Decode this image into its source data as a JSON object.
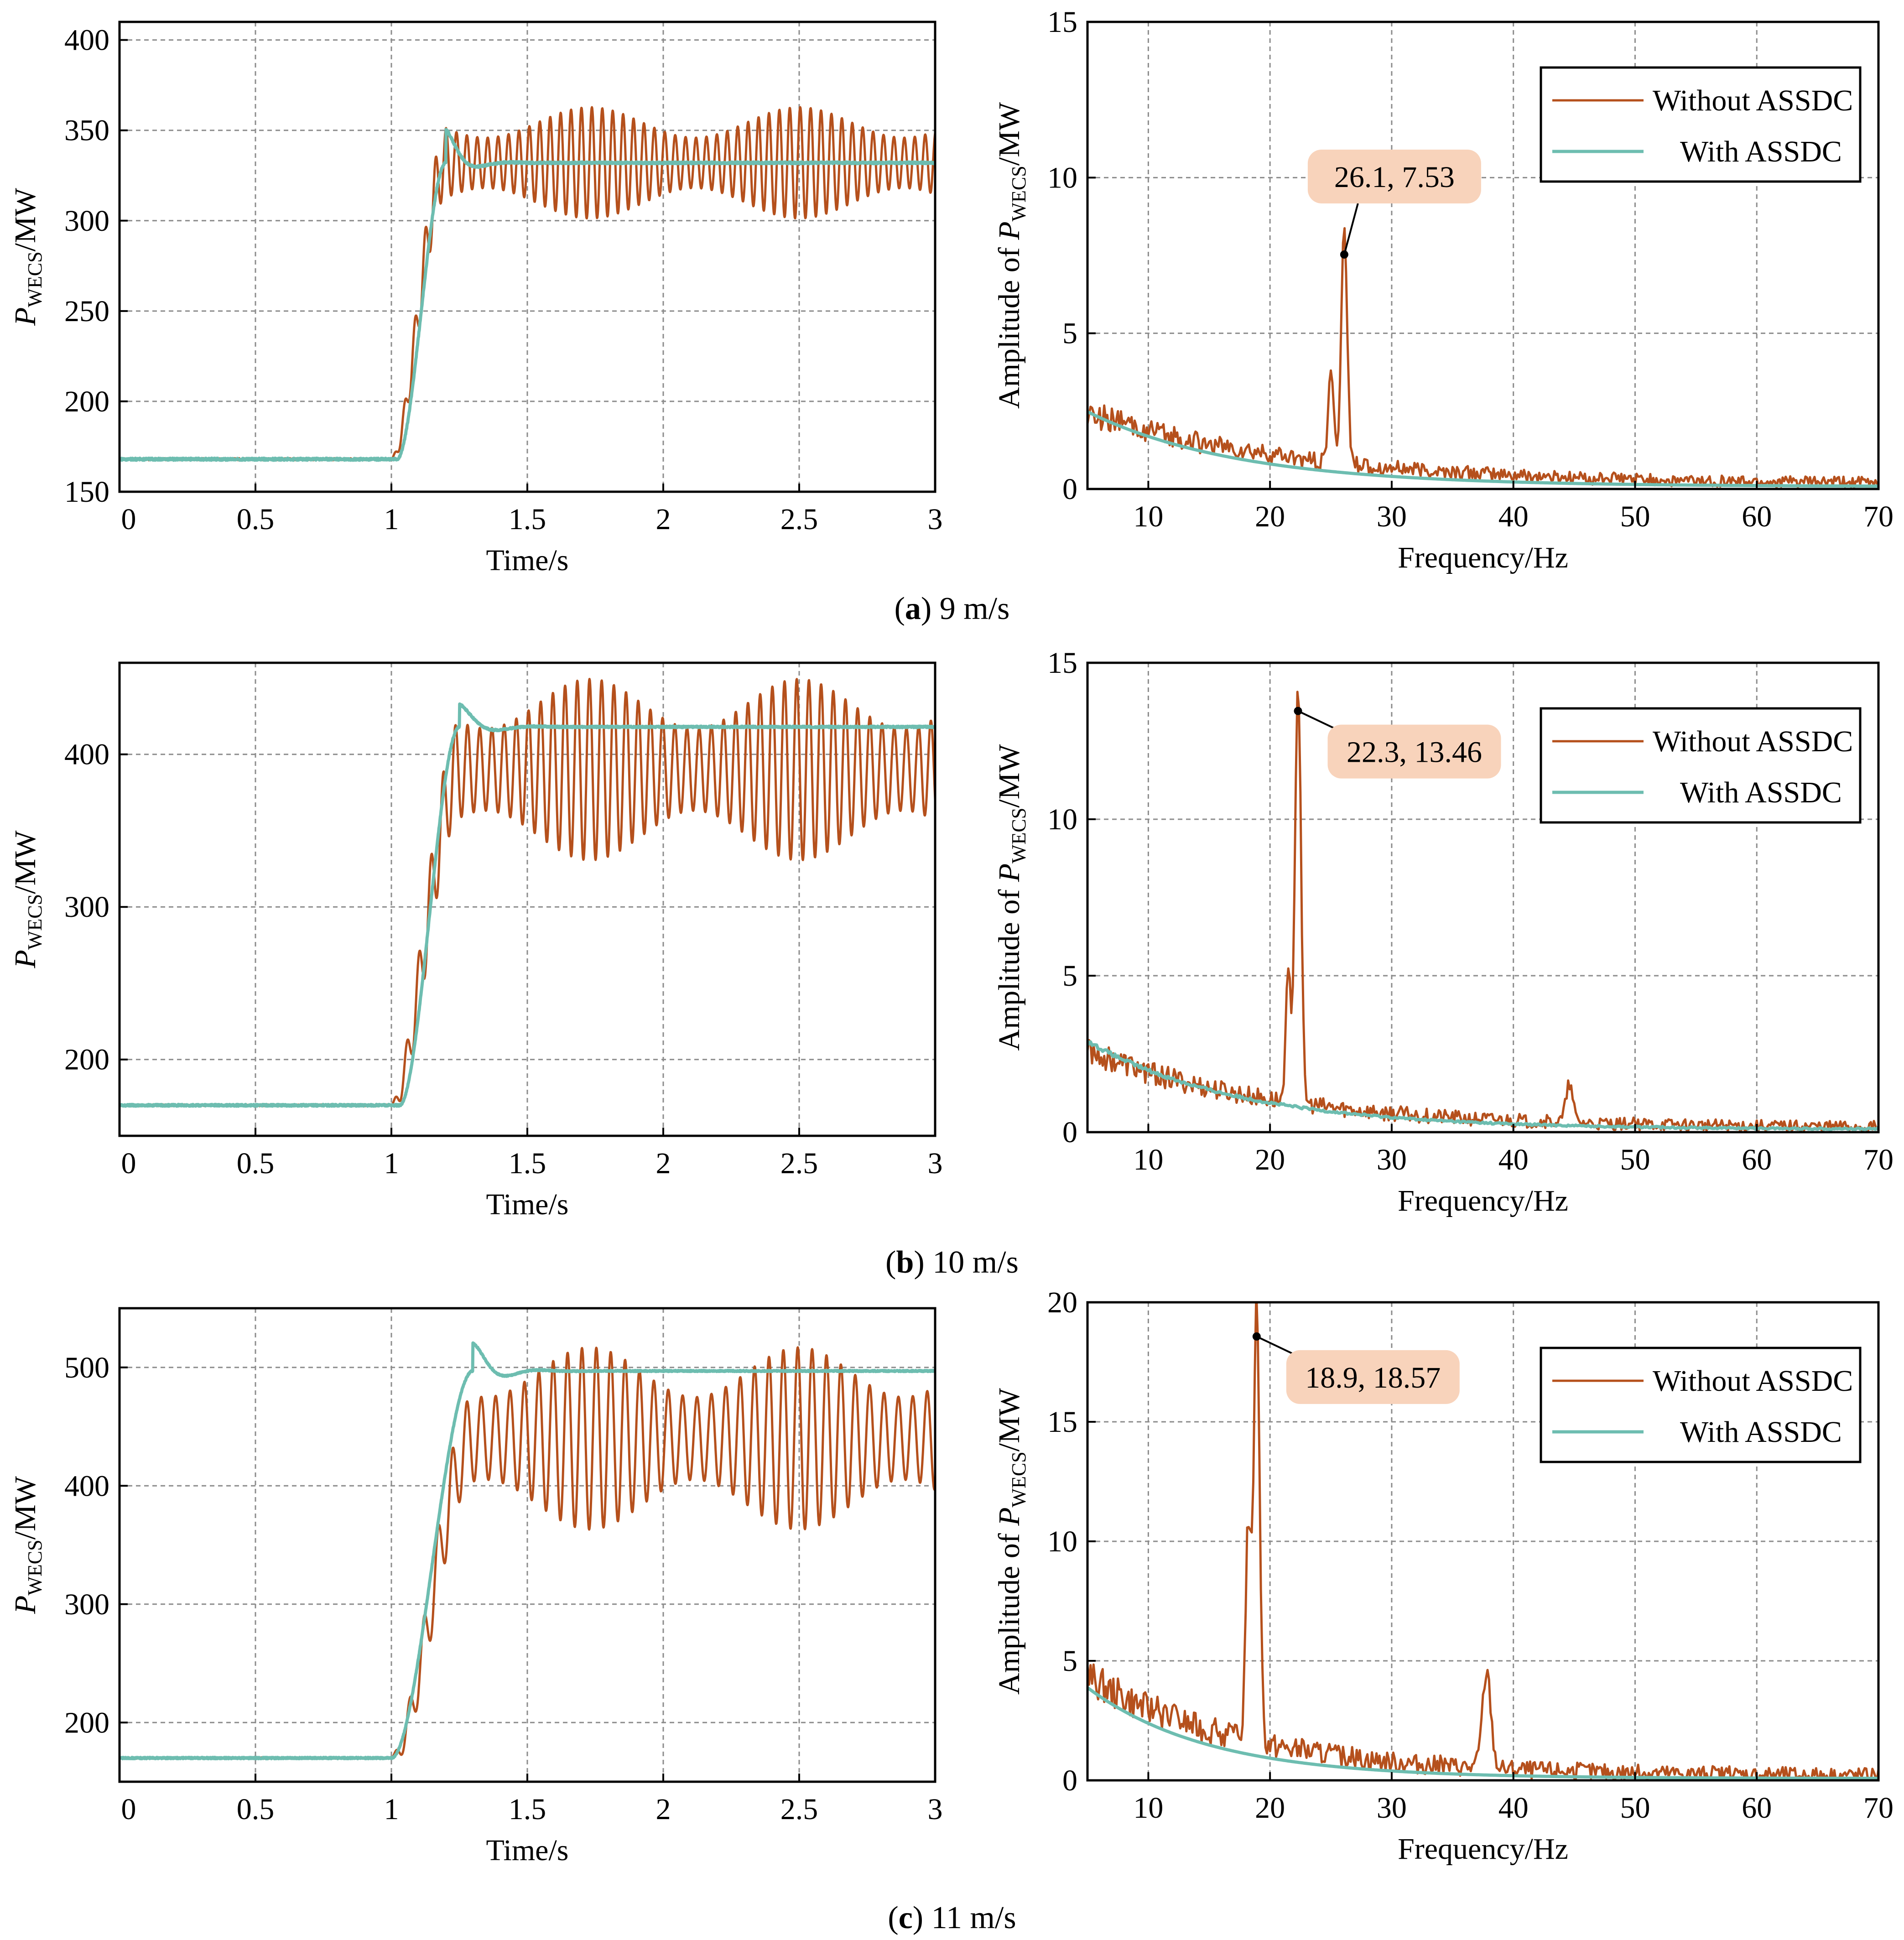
{
  "colors": {
    "without": "#b5501c",
    "with": "#6dbdb0",
    "grid": "#8c8c8c",
    "callout_fill": "#f8d3bb",
    "axis": "#000000"
  },
  "captions": [
    {
      "letter": "a",
      "text": " 9 m/s"
    },
    {
      "letter": "b",
      "text": " 10 m/s"
    },
    {
      "letter": "c",
      "text": " 11 m/s"
    }
  ],
  "chart_data": [
    {
      "id": "a-time",
      "type": "line",
      "panel": "a",
      "xlabel": "Time/s",
      "ylabel": "P_WECS/MW",
      "ylabel_parts": {
        "main": "P",
        "sub": "WECS",
        "unit": "/MW"
      },
      "xlim": [
        0,
        3
      ],
      "ylim": [
        150,
        410
      ],
      "xticks": [
        0,
        0.5,
        1,
        1.5,
        2,
        2.5,
        3
      ],
      "xtick_labels": [
        "0",
        "0.5",
        "1",
        "1.5",
        "2",
        "2.5",
        "3"
      ],
      "yticks": [
        150,
        200,
        250,
        300,
        350,
        400
      ],
      "ytick_labels": [
        "150",
        "200",
        "250",
        "300",
        "350",
        "400"
      ],
      "series": [
        {
          "name": "Without ASSDC",
          "color": "#b5501c",
          "model": {
            "kind": "step_osc",
            "y0": 168,
            "t_start": 1.0,
            "t_rise": 0.2,
            "y1": 332,
            "osc_amp": 28,
            "osc_freq": 26.1
          }
        },
        {
          "name": "With ASSDC",
          "color": "#6dbdb0",
          "model": {
            "kind": "step_damped",
            "y0": 168,
            "t_start": 1.02,
            "t_rise": 0.18,
            "y1": 332,
            "overshoot": 20,
            "damp": 18,
            "freq": 4
          }
        }
      ]
    },
    {
      "id": "a-fft",
      "type": "line",
      "panel": "a",
      "xlabel": "Frequency/Hz",
      "ylabel": "Amplitude of P_WECS/MW",
      "ylabel_parts": {
        "main": "Amplitude of ",
        "italic": "P",
        "sub": "WECS",
        "unit": "/MW"
      },
      "xlim": [
        5,
        70
      ],
      "ylim": [
        0,
        15
      ],
      "xticks": [
        10,
        20,
        30,
        40,
        50,
        60,
        70
      ],
      "xtick_labels": [
        "10",
        "20",
        "30",
        "40",
        "50",
        "60",
        "70"
      ],
      "yticks": [
        0,
        5,
        10,
        15
      ],
      "ytick_labels": [
        "0",
        "5",
        "10",
        "15"
      ],
      "legend": [
        "Without ASSDC",
        "With ASSDC"
      ],
      "legend_position": "top-right",
      "annotation": {
        "text": "26.1, 7.53",
        "x": 26.1,
        "y": 7.53
      },
      "series": [
        {
          "name": "Without ASSDC",
          "color": "#b5501c",
          "model": {
            "kind": "spectrum",
            "base": 2.2,
            "decay": 0.06,
            "peaks": [
              [
                26.1,
                7.53,
                0.35
              ],
              [
                25.0,
                3.0,
                0.3
              ]
            ],
            "noise": 0.35
          }
        },
        {
          "name": "With ASSDC",
          "color": "#6dbdb0",
          "model": {
            "kind": "spectrum",
            "base": 2.4,
            "decay": 0.08,
            "peaks": [],
            "noise": 0.0
          }
        }
      ]
    },
    {
      "id": "b-time",
      "type": "line",
      "panel": "b",
      "xlabel": "Time/s",
      "ylabel": "P_WECS/MW",
      "ylabel_parts": {
        "main": "P",
        "sub": "WECS",
        "unit": "/MW"
      },
      "xlim": [
        0,
        3
      ],
      "ylim": [
        150,
        460
      ],
      "xticks": [
        0,
        0.5,
        1,
        1.5,
        2,
        2.5,
        3
      ],
      "xtick_labels": [
        "0",
        "0.5",
        "1",
        "1.5",
        "2",
        "2.5",
        "3"
      ],
      "yticks": [
        200,
        300,
        400
      ],
      "ytick_labels": [
        "200",
        "300",
        "400"
      ],
      "series": [
        {
          "name": "Without ASSDC",
          "color": "#b5501c",
          "model": {
            "kind": "step_osc",
            "y0": 170,
            "t_start": 1.0,
            "t_rise": 0.25,
            "y1": 390,
            "osc_amp": 54,
            "osc_freq": 22.3
          }
        },
        {
          "name": "With ASSDC",
          "color": "#6dbdb0",
          "model": {
            "kind": "step_damped",
            "y0": 170,
            "t_start": 1.03,
            "t_rise": 0.22,
            "y1": 418,
            "overshoot": 16,
            "damp": 14,
            "freq": 3.5
          }
        }
      ]
    },
    {
      "id": "b-fft",
      "type": "line",
      "panel": "b",
      "xlabel": "Frequency/Hz",
      "ylabel": "Amplitude of P_WECS/MW",
      "ylabel_parts": {
        "main": "Amplitude of ",
        "italic": "P",
        "sub": "WECS",
        "unit": "/MW"
      },
      "xlim": [
        5,
        70
      ],
      "ylim": [
        0,
        15
      ],
      "xticks": [
        10,
        20,
        30,
        40,
        50,
        60,
        70
      ],
      "xtick_labels": [
        "10",
        "20",
        "30",
        "40",
        "50",
        "60",
        "70"
      ],
      "yticks": [
        0,
        5,
        10,
        15
      ],
      "ytick_labels": [
        "0",
        "5",
        "10",
        "15"
      ],
      "legend": [
        "Without ASSDC",
        "With ASSDC"
      ],
      "legend_position": "top-right",
      "annotation": {
        "text": "22.3, 13.46",
        "x": 22.3,
        "y": 13.46
      },
      "series": [
        {
          "name": "Without ASSDC",
          "color": "#b5501c",
          "model": {
            "kind": "spectrum",
            "base": 2.4,
            "decay": 0.07,
            "peaks": [
              [
                22.3,
                13.46,
                0.35
              ],
              [
                21.5,
                4.0,
                0.3
              ],
              [
                44.6,
                1.2,
                0.4
              ]
            ],
            "noise": 0.35
          }
        },
        {
          "name": "With ASSDC",
          "color": "#6dbdb0",
          "model": {
            "kind": "spectrum",
            "base": 2.8,
            "decay": 0.08,
            "peaks": [],
            "noise": 0.05
          }
        }
      ]
    },
    {
      "id": "c-time",
      "type": "line",
      "panel": "c",
      "xlabel": "Time/s",
      "ylabel": "P_WECS/MW",
      "ylabel_parts": {
        "main": "P",
        "sub": "WECS",
        "unit": "/MW"
      },
      "xlim": [
        0,
        3
      ],
      "ylim": [
        150,
        550
      ],
      "xticks": [
        0,
        0.5,
        1,
        1.5,
        2,
        2.5,
        3
      ],
      "xtick_labels": [
        "0",
        "0.5",
        "1",
        "1.5",
        "2",
        "2.5",
        "3"
      ],
      "yticks": [
        200,
        300,
        400,
        500
      ],
      "ytick_labels": [
        "200",
        "300",
        "400",
        "500"
      ],
      "series": [
        {
          "name": "Without ASSDC",
          "color": "#b5501c",
          "model": {
            "kind": "step_osc",
            "y0": 170,
            "t_start": 1.0,
            "t_rise": 0.3,
            "y1": 440,
            "osc_amp": 70,
            "osc_freq": 18.9
          }
        },
        {
          "name": "With ASSDC",
          "color": "#6dbdb0",
          "model": {
            "kind": "step_damped",
            "y0": 170,
            "t_start": 1.0,
            "t_rise": 0.3,
            "y1": 497,
            "overshoot": 25,
            "damp": 14,
            "freq": 4
          }
        }
      ]
    },
    {
      "id": "c-fft",
      "type": "line",
      "panel": "c",
      "xlabel": "Frequency/Hz",
      "ylabel": "Amplitude of P_WECS/MW",
      "ylabel_parts": {
        "main": "Amplitude of ",
        "italic": "P",
        "sub": "WECS",
        "unit": "/MW"
      },
      "xlim": [
        5,
        70
      ],
      "ylim": [
        0,
        20
      ],
      "xticks": [
        10,
        20,
        30,
        40,
        50,
        60,
        70
      ],
      "xtick_labels": [
        "10",
        "20",
        "30",
        "40",
        "50",
        "60",
        "70"
      ],
      "yticks": [
        0,
        5,
        10,
        15,
        20
      ],
      "ytick_labels": [
        "0",
        "5",
        "10",
        "15",
        "20"
      ],
      "legend": [
        "Without ASSDC",
        "With ASSDC"
      ],
      "legend_position": "top-right",
      "annotation": {
        "text": "18.9, 18.57",
        "x": 18.9,
        "y": 18.57
      },
      "series": [
        {
          "name": "Without ASSDC",
          "color": "#b5501c",
          "model": {
            "kind": "spectrum",
            "base": 4.0,
            "decay": 0.08,
            "peaks": [
              [
                18.9,
                18.57,
                0.35
              ],
              [
                18.2,
                9.0,
                0.3
              ],
              [
                37.8,
                4.0,
                0.5
              ]
            ],
            "noise": 0.6
          }
        },
        {
          "name": "With ASSDC",
          "color": "#6dbdb0",
          "model": {
            "kind": "spectrum",
            "base": 3.8,
            "decay": 0.1,
            "peaks": [],
            "noise": 0.0
          }
        }
      ]
    }
  ]
}
